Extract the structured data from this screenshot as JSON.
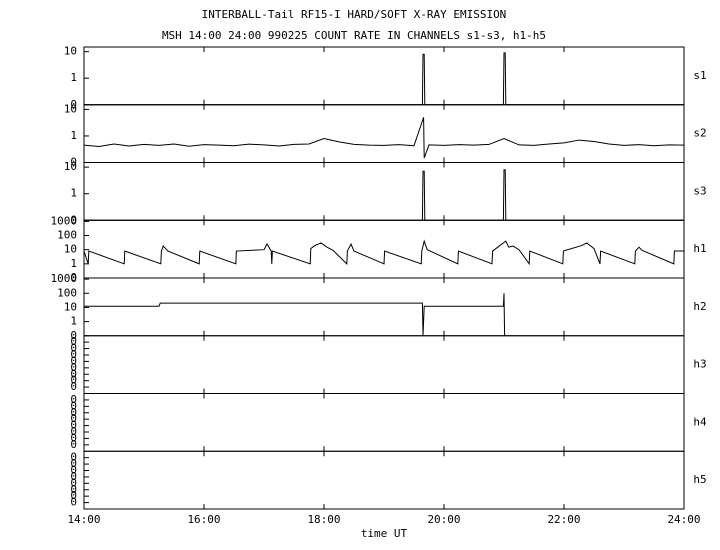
{
  "chart_data": [
    {
      "type": "line",
      "title": "INTERBALL-Tail RF15-I HARD/SOFT X-RAY EMISSION",
      "subtitle": "MSH 14:00 24:00 990225  COUNT RATE IN CHANNELS s1-s3, h1-h5",
      "log_y": true,
      "xlim": [
        14,
        24
      ],
      "ylim": [
        0.1,
        15
      ],
      "yticks": [
        10,
        1,
        {
          "value": 0.1,
          "label": "0"
        }
      ],
      "x": [
        14,
        19.64,
        19.65,
        19.67,
        19.68,
        20.99,
        21.0,
        21.02,
        21.03,
        24
      ],
      "series": [
        {
          "name": "s1",
          "color": "#000000",
          "values": [
            0.1,
            0.1,
            8,
            8,
            0.1,
            0.1,
            9,
            9,
            0.1,
            0.1
          ]
        }
      ]
    },
    {
      "type": "line",
      "log_y": true,
      "xlim": [
        14,
        24
      ],
      "ylim": [
        0.1,
        15
      ],
      "yticks": [
        10,
        1,
        {
          "value": 0.1,
          "label": "0"
        }
      ],
      "x": [
        14,
        14.25,
        14.5,
        14.75,
        15,
        15.25,
        15.5,
        15.75,
        16,
        16.25,
        16.5,
        16.75,
        17,
        17.25,
        17.5,
        17.75,
        18,
        18.25,
        18.5,
        18.75,
        19,
        19.25,
        19.5,
        19.66,
        19.67,
        19.75,
        20,
        20.25,
        20.5,
        20.75,
        21,
        21.25,
        21.5,
        21.75,
        22,
        22.25,
        22.5,
        22.75,
        23,
        23.25,
        23.5,
        23.75,
        24
      ],
      "series": [
        {
          "name": "s2",
          "color": "#000000",
          "values": [
            0.45,
            0.4,
            0.5,
            0.42,
            0.48,
            0.44,
            0.5,
            0.41,
            0.47,
            0.45,
            0.43,
            0.49,
            0.46,
            0.42,
            0.48,
            0.5,
            0.8,
            0.6,
            0.48,
            0.45,
            0.44,
            0.47,
            0.43,
            5,
            0.15,
            0.46,
            0.44,
            0.47,
            0.45,
            0.48,
            0.8,
            0.46,
            0.44,
            0.5,
            0.55,
            0.7,
            0.62,
            0.5,
            0.44,
            0.47,
            0.43,
            0.46,
            0.45
          ]
        }
      ]
    },
    {
      "type": "line",
      "log_y": true,
      "xlim": [
        14,
        24
      ],
      "ylim": [
        0.1,
        15
      ],
      "yticks": [
        10,
        1,
        {
          "value": 0.1,
          "label": "0"
        }
      ],
      "x": [
        14,
        19.64,
        19.65,
        19.67,
        19.68,
        20.99,
        21.0,
        21.02,
        21.03,
        24
      ],
      "series": [
        {
          "name": "s3",
          "color": "#000000",
          "values": [
            0.1,
            0.1,
            7,
            7,
            0.1,
            0.1,
            8,
            8,
            0.1,
            0.1
          ]
        }
      ]
    },
    {
      "type": "line",
      "log_y": true,
      "xlim": [
        14,
        24
      ],
      "ylim": [
        0.1,
        1200
      ],
      "yticks": [
        1000,
        100,
        10,
        1,
        {
          "value": 0.1,
          "label": "0"
        }
      ],
      "x": [
        14,
        14.07,
        14.08,
        14.67,
        14.68,
        15.28,
        15.29,
        15.32,
        15.4,
        15.92,
        15.93,
        16.53,
        16.54,
        17.0,
        17.05,
        17.12,
        17.13,
        17.14,
        17.77,
        17.78,
        17.85,
        17.95,
        18.05,
        18.15,
        18.38,
        18.39,
        18.45,
        18.5,
        19.0,
        19.01,
        19.62,
        19.63,
        19.67,
        19.72,
        20.23,
        20.24,
        20.8,
        20.81,
        21.03,
        21.08,
        21.15,
        21.25,
        21.42,
        21.43,
        21.98,
        21.99,
        22.3,
        22.38,
        22.5,
        22.6,
        22.61,
        23.18,
        23.19,
        23.25,
        23.3,
        23.83,
        23.84,
        24
      ],
      "series": [
        {
          "name": "h1",
          "color": "#000000",
          "values": [
            8,
            1,
            8,
            1,
            8,
            1,
            8,
            18,
            8,
            1,
            8,
            1,
            8,
            10,
            25,
            8,
            1,
            8,
            1,
            12,
            20,
            30,
            15,
            9,
            1,
            8,
            25,
            8,
            1,
            8,
            1,
            8,
            40,
            10,
            1,
            8,
            1,
            8,
            40,
            15,
            18,
            10,
            1,
            8,
            1,
            8,
            20,
            30,
            12,
            1,
            8,
            1,
            8,
            15,
            9,
            1,
            8,
            8
          ]
        }
      ]
    },
    {
      "type": "line",
      "log_y": true,
      "xlim": [
        14,
        24
      ],
      "ylim": [
        0.1,
        1200
      ],
      "yticks": [
        1000,
        100,
        10,
        1,
        {
          "value": 0.1,
          "label": "0"
        }
      ],
      "x": [
        14,
        15.25,
        15.27,
        19.64,
        19.65,
        19.67,
        20.99,
        21.0,
        21.01
      ],
      "series": [
        {
          "name": "h2",
          "color": "#000000",
          "values": [
            12,
            12,
            20,
            20,
            0.1,
            12,
            12,
            100,
            0.1
          ]
        }
      ]
    },
    {
      "type": "line",
      "log_y": true,
      "xlim": [
        14,
        24
      ],
      "ylim": [
        1e-09,
        1
      ],
      "yticks": [
        {
          "value": 0.1,
          "label": "0"
        },
        {
          "value": 0.01,
          "label": "0"
        },
        {
          "value": 0.001,
          "label": "0"
        },
        {
          "value": 0.0001,
          "label": "0"
        },
        {
          "value": 1e-05,
          "label": "0"
        },
        {
          "value": 1e-06,
          "label": "0"
        },
        {
          "value": 1e-07,
          "label": "0"
        },
        {
          "value": 1e-08,
          "label": "0"
        }
      ],
      "x": [],
      "series": [
        {
          "name": "h3",
          "color": "#000000",
          "values": []
        }
      ]
    },
    {
      "type": "line",
      "log_y": true,
      "xlim": [
        14,
        24
      ],
      "ylim": [
        1e-09,
        1
      ],
      "yticks": [
        {
          "value": 0.1,
          "label": "0"
        },
        {
          "value": 0.01,
          "label": "0"
        },
        {
          "value": 0.001,
          "label": "0"
        },
        {
          "value": 0.0001,
          "label": "0"
        },
        {
          "value": 1e-05,
          "label": "0"
        },
        {
          "value": 1e-06,
          "label": "0"
        },
        {
          "value": 1e-07,
          "label": "0"
        },
        {
          "value": 1e-08,
          "label": "0"
        }
      ],
      "x": [],
      "series": [
        {
          "name": "h4",
          "color": "#000000",
          "values": []
        }
      ]
    },
    {
      "type": "line",
      "log_y": true,
      "xlim": [
        14,
        24
      ],
      "ylim": [
        1e-09,
        1
      ],
      "yticks": [
        {
          "value": 0.1,
          "label": "0"
        },
        {
          "value": 0.01,
          "label": "0"
        },
        {
          "value": 0.001,
          "label": "0"
        },
        {
          "value": 0.0001,
          "label": "0"
        },
        {
          "value": 1e-05,
          "label": "0"
        },
        {
          "value": 1e-06,
          "label": "0"
        },
        {
          "value": 1e-07,
          "label": "0"
        },
        {
          "value": 1e-08,
          "label": "0"
        }
      ],
      "x": [],
      "series": [
        {
          "name": "h5",
          "color": "#000000",
          "values": []
        }
      ],
      "xlabel": "time UT",
      "xticks": [
        {
          "value": 14,
          "label": "14:00"
        },
        {
          "value": 16,
          "label": "16:00"
        },
        {
          "value": 18,
          "label": "18:00"
        },
        {
          "value": 20,
          "label": "20:00"
        },
        {
          "value": 22,
          "label": "22:00"
        },
        {
          "value": 24,
          "label": "24:00"
        }
      ]
    }
  ]
}
